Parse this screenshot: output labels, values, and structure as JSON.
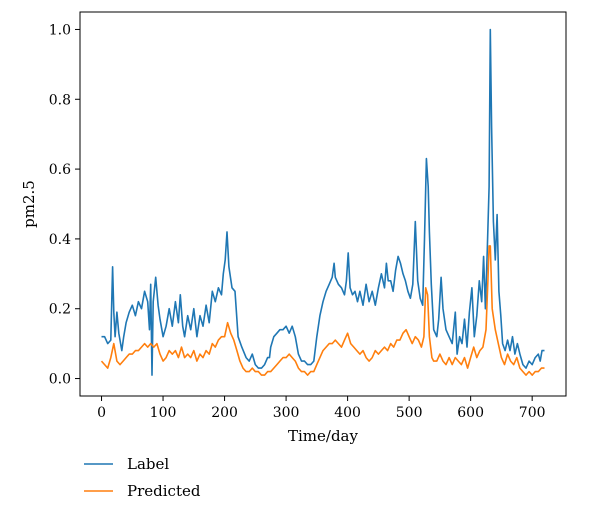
{
  "chart_data": {
    "type": "line",
    "xlabel": "Time/day",
    "ylabel": "pm2.5",
    "xlim": [
      -35,
      755
    ],
    "ylim": [
      -0.05,
      1.05
    ],
    "xticks": [
      0,
      100,
      200,
      300,
      400,
      500,
      600,
      700
    ],
    "yticks": [
      0.0,
      0.2,
      0.4,
      0.6,
      0.8,
      1.0
    ],
    "ytick_labels": [
      "0.0",
      "0.2",
      "0.4",
      "0.6",
      "0.8",
      "1.0"
    ],
    "legend_position": "below-left",
    "series": [
      {
        "name": "Label",
        "color": "#1f77b4",
        "points": [
          [
            0,
            0.12
          ],
          [
            5,
            0.12
          ],
          [
            10,
            0.1
          ],
          [
            15,
            0.11
          ],
          [
            18,
            0.32
          ],
          [
            20,
            0.19
          ],
          [
            22,
            0.12
          ],
          [
            25,
            0.19
          ],
          [
            28,
            0.13
          ],
          [
            30,
            0.11
          ],
          [
            33,
            0.08
          ],
          [
            36,
            0.12
          ],
          [
            40,
            0.16
          ],
          [
            45,
            0.19
          ],
          [
            50,
            0.21
          ],
          [
            55,
            0.18
          ],
          [
            60,
            0.22
          ],
          [
            65,
            0.2
          ],
          [
            70,
            0.25
          ],
          [
            75,
            0.22
          ],
          [
            78,
            0.14
          ],
          [
            80,
            0.27
          ],
          [
            82,
            0.01
          ],
          [
            84,
            0.22
          ],
          [
            88,
            0.29
          ],
          [
            92,
            0.21
          ],
          [
            95,
            0.17
          ],
          [
            100,
            0.12
          ],
          [
            105,
            0.15
          ],
          [
            110,
            0.2
          ],
          [
            115,
            0.15
          ],
          [
            120,
            0.22
          ],
          [
            125,
            0.16
          ],
          [
            128,
            0.24
          ],
          [
            132,
            0.15
          ],
          [
            135,
            0.12
          ],
          [
            140,
            0.18
          ],
          [
            145,
            0.14
          ],
          [
            150,
            0.2
          ],
          [
            155,
            0.12
          ],
          [
            160,
            0.18
          ],
          [
            165,
            0.15
          ],
          [
            170,
            0.21
          ],
          [
            175,
            0.16
          ],
          [
            180,
            0.25
          ],
          [
            185,
            0.22
          ],
          [
            190,
            0.26
          ],
          [
            195,
            0.24
          ],
          [
            198,
            0.3
          ],
          [
            201,
            0.34
          ],
          [
            204,
            0.42
          ],
          [
            207,
            0.32
          ],
          [
            212,
            0.26
          ],
          [
            217,
            0.25
          ],
          [
            222,
            0.12
          ],
          [
            228,
            0.09
          ],
          [
            235,
            0.06
          ],
          [
            240,
            0.05
          ],
          [
            245,
            0.07
          ],
          [
            250,
            0.04
          ],
          [
            255,
            0.03
          ],
          [
            260,
            0.03
          ],
          [
            265,
            0.04
          ],
          [
            270,
            0.06
          ],
          [
            273,
            0.06
          ],
          [
            275,
            0.09
          ],
          [
            280,
            0.12
          ],
          [
            285,
            0.13
          ],
          [
            290,
            0.14
          ],
          [
            295,
            0.14
          ],
          [
            300,
            0.15
          ],
          [
            305,
            0.13
          ],
          [
            310,
            0.15
          ],
          [
            315,
            0.12
          ],
          [
            320,
            0.07
          ],
          [
            325,
            0.05
          ],
          [
            330,
            0.05
          ],
          [
            335,
            0.04
          ],
          [
            340,
            0.04
          ],
          [
            345,
            0.05
          ],
          [
            350,
            0.12
          ],
          [
            355,
            0.18
          ],
          [
            360,
            0.22
          ],
          [
            365,
            0.25
          ],
          [
            370,
            0.27
          ],
          [
            375,
            0.29
          ],
          [
            378,
            0.33
          ],
          [
            380,
            0.29
          ],
          [
            385,
            0.27
          ],
          [
            390,
            0.26
          ],
          [
            395,
            0.24
          ],
          [
            398,
            0.28
          ],
          [
            401,
            0.36
          ],
          [
            404,
            0.26
          ],
          [
            408,
            0.24
          ],
          [
            412,
            0.25
          ],
          [
            416,
            0.22
          ],
          [
            420,
            0.25
          ],
          [
            425,
            0.21
          ],
          [
            430,
            0.27
          ],
          [
            435,
            0.22
          ],
          [
            440,
            0.25
          ],
          [
            445,
            0.21
          ],
          [
            450,
            0.26
          ],
          [
            455,
            0.3
          ],
          [
            460,
            0.26
          ],
          [
            463,
            0.33
          ],
          [
            466,
            0.28
          ],
          [
            470,
            0.28
          ],
          [
            474,
            0.25
          ],
          [
            478,
            0.31
          ],
          [
            482,
            0.35
          ],
          [
            486,
            0.33
          ],
          [
            490,
            0.3
          ],
          [
            494,
            0.28
          ],
          [
            498,
            0.25
          ],
          [
            502,
            0.23
          ],
          [
            506,
            0.27
          ],
          [
            510,
            0.45
          ],
          [
            514,
            0.28
          ],
          [
            518,
            0.23
          ],
          [
            522,
            0.21
          ],
          [
            525,
            0.4
          ],
          [
            528,
            0.63
          ],
          [
            531,
            0.55
          ],
          [
            533,
            0.42
          ],
          [
            536,
            0.27
          ],
          [
            540,
            0.14
          ],
          [
            545,
            0.12
          ],
          [
            548,
            0.17
          ],
          [
            552,
            0.29
          ],
          [
            555,
            0.2
          ],
          [
            560,
            0.14
          ],
          [
            565,
            0.12
          ],
          [
            570,
            0.1
          ],
          [
            575,
            0.19
          ],
          [
            578,
            0.07
          ],
          [
            582,
            0.12
          ],
          [
            586,
            0.1
          ],
          [
            590,
            0.17
          ],
          [
            594,
            0.09
          ],
          [
            598,
            0.19
          ],
          [
            602,
            0.26
          ],
          [
            606,
            0.12
          ],
          [
            610,
            0.18
          ],
          [
            614,
            0.28
          ],
          [
            618,
            0.22
          ],
          [
            621,
            0.35
          ],
          [
            624,
            0.2
          ],
          [
            627,
            0.37
          ],
          [
            630,
            0.55
          ],
          [
            632,
            1.0
          ],
          [
            634,
            0.72
          ],
          [
            637,
            0.45
          ],
          [
            640,
            0.34
          ],
          [
            643,
            0.47
          ],
          [
            646,
            0.25
          ],
          [
            649,
            0.18
          ],
          [
            652,
            0.1
          ],
          [
            656,
            0.08
          ],
          [
            660,
            0.11
          ],
          [
            664,
            0.08
          ],
          [
            668,
            0.12
          ],
          [
            672,
            0.07
          ],
          [
            676,
            0.1
          ],
          [
            680,
            0.07
          ],
          [
            685,
            0.04
          ],
          [
            690,
            0.03
          ],
          [
            695,
            0.05
          ],
          [
            700,
            0.04
          ],
          [
            705,
            0.06
          ],
          [
            710,
            0.07
          ],
          [
            713,
            0.05
          ],
          [
            716,
            0.08
          ],
          [
            720,
            0.08
          ]
        ]
      },
      {
        "name": "Predicted",
        "color": "#ff7f0e",
        "points": [
          [
            0,
            0.05
          ],
          [
            5,
            0.04
          ],
          [
            10,
            0.03
          ],
          [
            15,
            0.06
          ],
          [
            20,
            0.1
          ],
          [
            25,
            0.05
          ],
          [
            30,
            0.04
          ],
          [
            35,
            0.05
          ],
          [
            40,
            0.06
          ],
          [
            45,
            0.07
          ],
          [
            50,
            0.07
          ],
          [
            55,
            0.08
          ],
          [
            60,
            0.08
          ],
          [
            65,
            0.09
          ],
          [
            70,
            0.1
          ],
          [
            75,
            0.09
          ],
          [
            80,
            0.1
          ],
          [
            85,
            0.09
          ],
          [
            90,
            0.1
          ],
          [
            95,
            0.07
          ],
          [
            100,
            0.05
          ],
          [
            105,
            0.06
          ],
          [
            110,
            0.08
          ],
          [
            115,
            0.07
          ],
          [
            120,
            0.08
          ],
          [
            125,
            0.06
          ],
          [
            130,
            0.09
          ],
          [
            135,
            0.06
          ],
          [
            140,
            0.07
          ],
          [
            145,
            0.06
          ],
          [
            150,
            0.08
          ],
          [
            155,
            0.05
          ],
          [
            160,
            0.07
          ],
          [
            165,
            0.06
          ],
          [
            170,
            0.08
          ],
          [
            175,
            0.07
          ],
          [
            180,
            0.1
          ],
          [
            185,
            0.09
          ],
          [
            190,
            0.11
          ],
          [
            195,
            0.12
          ],
          [
            200,
            0.12
          ],
          [
            205,
            0.16
          ],
          [
            210,
            0.13
          ],
          [
            215,
            0.11
          ],
          [
            220,
            0.08
          ],
          [
            225,
            0.05
          ],
          [
            230,
            0.03
          ],
          [
            235,
            0.02
          ],
          [
            240,
            0.02
          ],
          [
            245,
            0.03
          ],
          [
            250,
            0.02
          ],
          [
            255,
            0.02
          ],
          [
            260,
            0.01
          ],
          [
            265,
            0.01
          ],
          [
            270,
            0.02
          ],
          [
            275,
            0.02
          ],
          [
            280,
            0.03
          ],
          [
            285,
            0.04
          ],
          [
            290,
            0.05
          ],
          [
            295,
            0.06
          ],
          [
            300,
            0.06
          ],
          [
            305,
            0.07
          ],
          [
            310,
            0.06
          ],
          [
            315,
            0.05
          ],
          [
            320,
            0.03
          ],
          [
            325,
            0.02
          ],
          [
            330,
            0.02
          ],
          [
            335,
            0.01
          ],
          [
            340,
            0.02
          ],
          [
            345,
            0.02
          ],
          [
            350,
            0.04
          ],
          [
            355,
            0.06
          ],
          [
            360,
            0.08
          ],
          [
            365,
            0.09
          ],
          [
            370,
            0.1
          ],
          [
            375,
            0.1
          ],
          [
            380,
            0.11
          ],
          [
            385,
            0.1
          ],
          [
            390,
            0.09
          ],
          [
            395,
            0.11
          ],
          [
            400,
            0.13
          ],
          [
            405,
            0.1
          ],
          [
            410,
            0.09
          ],
          [
            415,
            0.08
          ],
          [
            420,
            0.07
          ],
          [
            425,
            0.08
          ],
          [
            430,
            0.06
          ],
          [
            435,
            0.05
          ],
          [
            440,
            0.06
          ],
          [
            445,
            0.08
          ],
          [
            450,
            0.07
          ],
          [
            455,
            0.08
          ],
          [
            460,
            0.09
          ],
          [
            465,
            0.08
          ],
          [
            470,
            0.1
          ],
          [
            475,
            0.09
          ],
          [
            480,
            0.11
          ],
          [
            485,
            0.11
          ],
          [
            490,
            0.13
          ],
          [
            495,
            0.14
          ],
          [
            500,
            0.12
          ],
          [
            505,
            0.1
          ],
          [
            510,
            0.12
          ],
          [
            515,
            0.11
          ],
          [
            520,
            0.09
          ],
          [
            524,
            0.12
          ],
          [
            527,
            0.26
          ],
          [
            530,
            0.24
          ],
          [
            533,
            0.12
          ],
          [
            537,
            0.06
          ],
          [
            540,
            0.05
          ],
          [
            545,
            0.05
          ],
          [
            550,
            0.07
          ],
          [
            555,
            0.05
          ],
          [
            560,
            0.04
          ],
          [
            565,
            0.06
          ],
          [
            570,
            0.04
          ],
          [
            575,
            0.06
          ],
          [
            580,
            0.05
          ],
          [
            585,
            0.04
          ],
          [
            590,
            0.06
          ],
          [
            595,
            0.03
          ],
          [
            600,
            0.06
          ],
          [
            605,
            0.09
          ],
          [
            610,
            0.06
          ],
          [
            615,
            0.08
          ],
          [
            620,
            0.09
          ],
          [
            625,
            0.14
          ],
          [
            628,
            0.28
          ],
          [
            630,
            0.38
          ],
          [
            632,
            0.38
          ],
          [
            635,
            0.2
          ],
          [
            640,
            0.14
          ],
          [
            645,
            0.1
          ],
          [
            650,
            0.06
          ],
          [
            655,
            0.04
          ],
          [
            660,
            0.07
          ],
          [
            665,
            0.05
          ],
          [
            670,
            0.04
          ],
          [
            675,
            0.06
          ],
          [
            680,
            0.03
          ],
          [
            685,
            0.02
          ],
          [
            690,
            0.01
          ],
          [
            695,
            0.02
          ],
          [
            700,
            0.01
          ],
          [
            705,
            0.02
          ],
          [
            710,
            0.02
          ],
          [
            715,
            0.03
          ],
          [
            720,
            0.03
          ]
        ]
      }
    ]
  }
}
